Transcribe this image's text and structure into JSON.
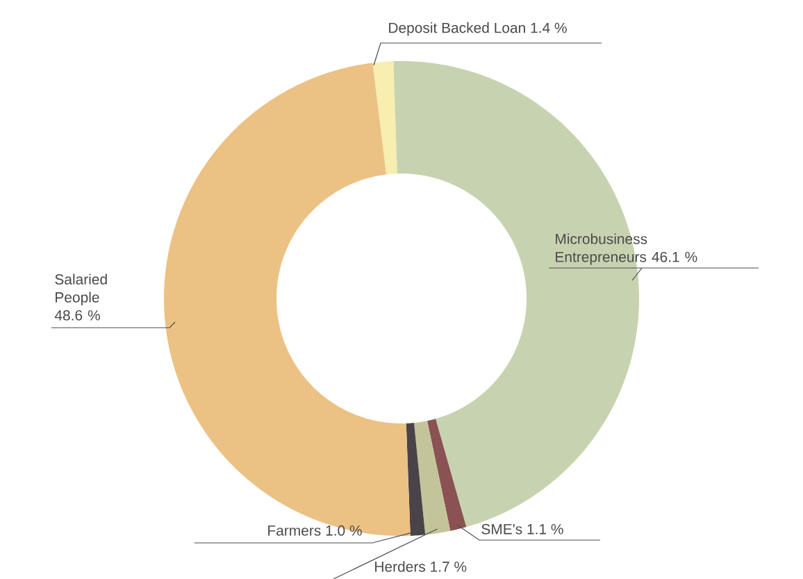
{
  "chart_data": {
    "type": "donut",
    "categories": [
      "Deposit Backed Loan",
      "Microbusiness Entrepreneurs",
      "SME's",
      "Herders",
      "Farmers",
      "Salaried People"
    ],
    "values": [
      1.4,
      46.1,
      1.1,
      1.7,
      1.0,
      48.6
    ],
    "value_labels": [
      "1.4 %",
      "46.1 %",
      "1.1 %",
      "1.7 %",
      "1.0 %",
      "48.6 %"
    ],
    "colors": [
      "#f7eeb0",
      "#c7d3b0",
      "#8a5252",
      "#c4c49a",
      "#4a4448",
      "#ecc184"
    ]
  }
}
